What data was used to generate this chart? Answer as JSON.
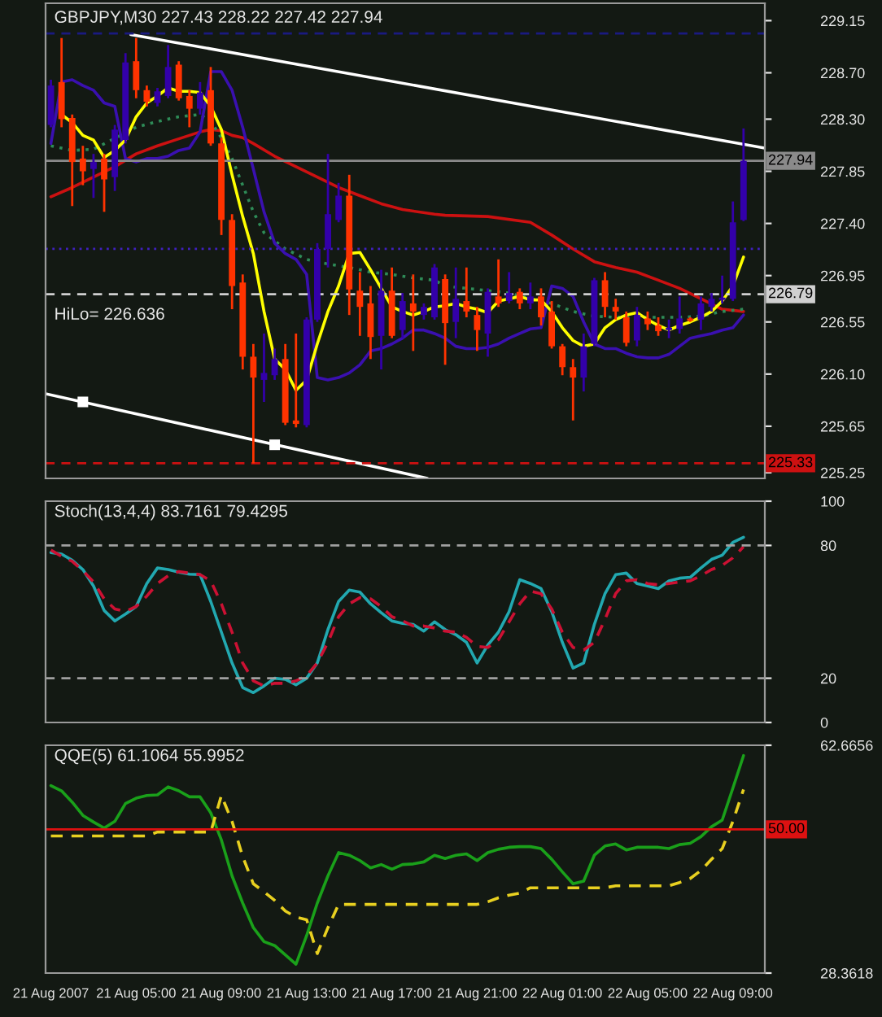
{
  "chart_data": [
    {
      "type": "candlestick",
      "title": "GBPJPY,M30 227.43 228.22 227.42 227.94",
      "annotations": [
        "HiLo= 226.636"
      ],
      "x": [
        "2007-08-21T01:00",
        "2007-08-21T01:30",
        "2007-08-21T02:00",
        "2007-08-21T02:30",
        "2007-08-21T03:00",
        "2007-08-21T03:30",
        "2007-08-21T04:00",
        "2007-08-21T04:30",
        "2007-08-21T05:00",
        "2007-08-21T05:30",
        "2007-08-21T06:00",
        "2007-08-21T06:30",
        "2007-08-21T07:00",
        "2007-08-21T07:30",
        "2007-08-21T08:00",
        "2007-08-21T08:30",
        "2007-08-21T09:00",
        "2007-08-21T09:30",
        "2007-08-21T10:00",
        "2007-08-21T10:30",
        "2007-08-21T11:00",
        "2007-08-21T11:30",
        "2007-08-21T12:00",
        "2007-08-21T12:30",
        "2007-08-21T13:00",
        "2007-08-21T13:30",
        "2007-08-21T14:00",
        "2007-08-21T14:30",
        "2007-08-21T15:00",
        "2007-08-21T15:30",
        "2007-08-21T16:00",
        "2007-08-21T16:30",
        "2007-08-21T17:00",
        "2007-08-21T17:30",
        "2007-08-21T18:00",
        "2007-08-21T18:30",
        "2007-08-21T19:00",
        "2007-08-21T19:30",
        "2007-08-21T20:00",
        "2007-08-21T20:30",
        "2007-08-21T21:00",
        "2007-08-21T21:30",
        "2007-08-21T22:00",
        "2007-08-21T22:30",
        "2007-08-21T23:00",
        "2007-08-21T23:30",
        "2007-08-22T00:00",
        "2007-08-22T00:30",
        "2007-08-22T01:00",
        "2007-08-22T01:30",
        "2007-08-22T02:00",
        "2007-08-22T02:30",
        "2007-08-22T03:00",
        "2007-08-22T03:30",
        "2007-08-22T04:00",
        "2007-08-22T04:30",
        "2007-08-22T05:00",
        "2007-08-22T05:30",
        "2007-08-22T06:00",
        "2007-08-22T06:30",
        "2007-08-22T07:00",
        "2007-08-22T07:30",
        "2007-08-22T08:00",
        "2007-08-22T08:30",
        "2007-08-22T09:00",
        "2007-08-22T09:30"
      ],
      "ohlc": [
        [
          228.25,
          228.64,
          228.23,
          228.59
        ],
        [
          228.62,
          229.0,
          228.23,
          228.3
        ],
        [
          228.31,
          228.34,
          227.55,
          227.93
        ],
        [
          227.96,
          228.07,
          227.73,
          227.85
        ],
        [
          227.87,
          228.0,
          227.62,
          227.93
        ],
        [
          227.96,
          228.0,
          227.5,
          227.78
        ],
        [
          227.8,
          228.25,
          227.68,
          228.21
        ],
        [
          228.12,
          228.87,
          228.09,
          228.79
        ],
        [
          228.8,
          229.0,
          228.48,
          228.55
        ],
        [
          228.55,
          228.59,
          228.41,
          228.45
        ],
        [
          228.44,
          228.57,
          228.41,
          228.54
        ],
        [
          228.5,
          228.94,
          228.48,
          228.75
        ],
        [
          228.77,
          228.8,
          228.46,
          228.48
        ],
        [
          228.5,
          228.55,
          228.23,
          228.39
        ],
        [
          228.39,
          228.62,
          228.34,
          228.53
        ],
        [
          228.55,
          228.75,
          228.07,
          228.09
        ],
        [
          228.09,
          228.14,
          227.3,
          227.43
        ],
        [
          227.43,
          227.48,
          226.66,
          226.86
        ],
        [
          226.89,
          226.96,
          226.14,
          226.25
        ],
        [
          226.25,
          226.36,
          225.33,
          226.07
        ],
        [
          226.05,
          226.45,
          225.86,
          226.11
        ],
        [
          226.09,
          226.32,
          226.05,
          226.23
        ],
        [
          226.23,
          226.36,
          225.66,
          225.68
        ],
        [
          225.7,
          226.45,
          225.64,
          225.67
        ],
        [
          225.66,
          226.59,
          225.64,
          226.57
        ],
        [
          226.57,
          227.23,
          226.55,
          227.18
        ],
        [
          227.18,
          228.0,
          227.02,
          227.48
        ],
        [
          227.43,
          227.75,
          227.41,
          227.64
        ],
        [
          227.64,
          227.82,
          226.61,
          226.83
        ],
        [
          226.82,
          226.98,
          226.43,
          226.68
        ],
        [
          226.71,
          226.86,
          226.23,
          226.42
        ],
        [
          226.43,
          227.0,
          226.14,
          226.82
        ],
        [
          226.82,
          227.02,
          226.41,
          226.43
        ],
        [
          226.48,
          226.8,
          226.41,
          226.73
        ],
        [
          226.71,
          226.96,
          226.3,
          226.64
        ],
        [
          226.61,
          226.71,
          226.57,
          226.68
        ],
        [
          226.59,
          227.05,
          226.57,
          227.02
        ],
        [
          226.92,
          226.96,
          226.18,
          226.54
        ],
        [
          226.55,
          227.02,
          226.41,
          226.75
        ],
        [
          226.73,
          227.02,
          226.59,
          226.64
        ],
        [
          226.61,
          226.68,
          226.3,
          226.48
        ],
        [
          226.45,
          226.84,
          226.25,
          226.81
        ],
        [
          226.77,
          227.09,
          226.68,
          226.71
        ],
        [
          226.73,
          226.98,
          226.71,
          226.8
        ],
        [
          226.81,
          226.84,
          226.66,
          226.71
        ],
        [
          226.71,
          226.89,
          226.66,
          226.77
        ],
        [
          226.77,
          226.84,
          226.52,
          226.59
        ],
        [
          226.64,
          226.73,
          226.32,
          226.34
        ],
        [
          226.34,
          226.36,
          226.09,
          226.16
        ],
        [
          226.16,
          226.23,
          225.7,
          226.07
        ],
        [
          226.07,
          226.45,
          225.95,
          226.34
        ],
        [
          226.36,
          226.93,
          226.34,
          226.91
        ],
        [
          226.91,
          226.98,
          226.59,
          226.68
        ],
        [
          226.68,
          226.75,
          226.57,
          226.64
        ],
        [
          226.59,
          226.64,
          226.34,
          226.37
        ],
        [
          226.39,
          226.68,
          226.34,
          226.61
        ],
        [
          226.58,
          226.64,
          226.48,
          226.53
        ],
        [
          226.52,
          226.59,
          226.43,
          226.47
        ],
        [
          226.48,
          226.57,
          226.41,
          226.5
        ],
        [
          226.49,
          226.77,
          226.45,
          226.58
        ],
        [
          226.58,
          226.59,
          226.55,
          226.56
        ],
        [
          226.57,
          226.77,
          226.48,
          226.71
        ],
        [
          226.68,
          226.8,
          226.64,
          226.75
        ],
        [
          226.74,
          226.95,
          226.71,
          226.76
        ],
        [
          226.75,
          227.59,
          226.73,
          227.41
        ],
        [
          227.43,
          228.22,
          227.42,
          227.94
        ]
      ],
      "colors": [
        "#3300aa",
        "#ff3300",
        "#ff3300",
        "#ff3300",
        "#3300aa",
        "#ff3300",
        "#3300aa",
        "#3300aa",
        "#ff3300",
        "#ff3300",
        "#3300aa",
        "#3300aa",
        "#ff3300",
        "#ff3300",
        "#3300aa",
        "#ff3300",
        "#ff3300",
        "#ff3300",
        "#ff3300",
        "#ff3300",
        "#3300aa",
        "#3300aa",
        "#ff3300",
        "#ff3300",
        "#3300aa",
        "#3300aa",
        "#3300aa",
        "#3300aa",
        "#ff3300",
        "#ff3300",
        "#ff3300",
        "#3300aa",
        "#ff3300",
        "#3300aa",
        "#ff3300",
        "#3300aa",
        "#3300aa",
        "#ff3300",
        "#3300aa",
        "#ff3300",
        "#ff3300",
        "#3300aa",
        "#ff3300",
        "#3300aa",
        "#ff3300",
        "#3300aa",
        "#ff3300",
        "#ff3300",
        "#ff3300",
        "#ff3300",
        "#3300aa",
        "#3300aa",
        "#ff3300",
        "#ff3300",
        "#ff3300",
        "#3300aa",
        "#ff3300",
        "#ff3300",
        "#3300aa",
        "#3300aa",
        "#ff3300",
        "#3300aa",
        "#3300aa",
        "#3300aa",
        "#3300aa",
        "#3300aa"
      ],
      "series": [
        {
          "type": "line",
          "color": "#cc1111",
          "x": [
            "2007-08-21T01:00",
            "2007-08-21T02:00",
            "2007-08-21T03:00",
            "2007-08-21T04:00",
            "2007-08-21T05:00",
            "2007-08-21T06:00",
            "2007-08-21T07:00",
            "2007-08-21T08:00",
            "2007-08-21T08:30",
            "2007-08-21T09:00",
            "2007-08-21T09:30",
            "2007-08-21T10:00",
            "2007-08-21T10:30",
            "2007-08-21T11:30",
            "2007-08-21T12:30",
            "2007-08-21T13:30",
            "2007-08-21T14:30",
            "2007-08-21T15:30",
            "2007-08-21T16:30",
            "2007-08-21T17:30",
            "2007-08-21T19:00",
            "2007-08-21T19:30",
            "2007-08-21T21:30",
            "2007-08-21T23:30",
            "2007-08-22T00:30",
            "2007-08-22T01:30",
            "2007-08-22T02:30",
            "2007-08-22T03:30",
            "2007-08-22T04:30",
            "2007-08-22T05:30",
            "2007-08-22T06:30",
            "2007-08-22T07:30",
            "2007-08-22T08:30",
            "2007-08-22T09:30"
          ],
          "values": [
            227.63,
            227.71,
            227.8,
            227.89,
            228.0,
            228.07,
            228.13,
            228.19,
            228.21,
            228.2,
            228.16,
            228.14,
            228.09,
            227.98,
            227.89,
            227.8,
            227.71,
            227.64,
            227.57,
            227.52,
            227.48,
            227.47,
            227.46,
            227.41,
            227.3,
            227.18,
            227.07,
            227.02,
            226.98,
            226.91,
            226.84,
            226.75,
            226.66,
            226.64
          ]
        },
        {
          "type": "line",
          "color": "#2e8b57",
          "line_style": "dotted",
          "x": [
            "2007-08-21T01:00",
            "2007-08-21T02:00",
            "2007-08-21T03:00",
            "2007-08-21T05:00",
            "2007-08-21T06:00",
            "2007-08-21T07:00",
            "2007-08-21T08:00",
            "2007-08-21T08:30",
            "2007-08-21T09:00",
            "2007-08-21T09:30",
            "2007-08-21T10:00",
            "2007-08-21T10:30",
            "2007-08-21T11:00",
            "2007-08-21T12:00",
            "2007-08-21T13:00",
            "2007-08-21T14:00",
            "2007-08-21T15:00",
            "2007-08-21T16:00",
            "2007-08-21T17:00",
            "2007-08-21T18:00",
            "2007-08-21T19:00",
            "2007-08-21T19:30",
            "2007-08-21T20:30",
            "2007-08-21T21:30",
            "2007-08-21T22:30",
            "2007-08-21T23:30",
            "2007-08-22T00:30",
            "2007-08-22T01:30",
            "2007-08-22T02:30",
            "2007-08-22T03:30",
            "2007-08-22T04:30",
            "2007-08-22T05:30",
            "2007-08-22T06:30",
            "2007-08-22T07:30",
            "2007-08-22T08:30",
            "2007-08-22T09:30"
          ],
          "values": [
            228.07,
            228.03,
            228.04,
            228.23,
            228.28,
            228.32,
            228.34,
            228.28,
            228.14,
            227.96,
            227.73,
            227.5,
            227.32,
            227.18,
            227.09,
            227.05,
            227.02,
            226.98,
            226.96,
            226.93,
            226.91,
            226.86,
            226.84,
            226.82,
            226.8,
            226.75,
            226.71,
            226.64,
            226.6,
            226.59,
            226.59,
            226.59,
            226.59,
            226.6,
            226.64,
            226.66
          ]
        },
        {
          "type": "line",
          "color": "#3a10b0",
          "values": [
            228.09,
            228.62,
            228.64,
            228.59,
            228.55,
            228.44,
            228.41,
            227.96,
            227.93,
            227.96,
            227.96,
            227.98,
            228.03,
            228.05,
            228.19,
            228.71,
            228.71,
            228.55,
            228.23,
            227.87,
            227.5,
            227.23,
            227.14,
            227.09,
            226.96,
            226.07,
            226.05,
            226.07,
            226.11,
            226.18,
            226.3,
            226.32,
            226.36,
            226.41,
            226.48,
            226.48,
            226.45,
            226.41,
            226.34,
            226.32,
            226.32,
            226.33,
            226.36,
            226.41,
            226.45,
            226.49,
            226.5,
            226.86,
            226.84,
            226.77,
            226.55,
            226.36,
            226.32,
            226.32,
            226.28,
            226.25,
            226.24,
            226.24,
            226.27,
            226.34,
            226.41,
            226.43,
            226.45,
            226.48,
            226.5,
            226.61
          ]
        },
        {
          "type": "line",
          "color": "#ffff00",
          "values": [
            null,
            228.34,
            228.27,
            228.16,
            228.12,
            227.97,
            228.03,
            228.12,
            228.32,
            228.44,
            228.5,
            228.57,
            228.54,
            228.54,
            228.53,
            228.41,
            228.21,
            227.82,
            227.46,
            227.14,
            226.64,
            226.23,
            226.14,
            225.96,
            226.05,
            226.36,
            226.64,
            226.86,
            227.14,
            227.15,
            227.0,
            226.84,
            226.68,
            226.64,
            226.61,
            226.64,
            226.68,
            226.69,
            226.71,
            226.68,
            226.66,
            226.63,
            226.73,
            226.75,
            226.77,
            226.74,
            226.74,
            226.64,
            226.5,
            226.39,
            226.34,
            226.36,
            226.5,
            226.57,
            226.61,
            226.63,
            226.57,
            226.52,
            226.48,
            226.52,
            226.55,
            226.59,
            226.64,
            226.73,
            226.86,
            227.11
          ]
        },
        {
          "type": "line",
          "color": "#ffffff",
          "x": [
            "2007-08-21T04:45",
            "2007-08-22T10:30"
          ],
          "values": [
            229.03,
            228.05
          ]
        },
        {
          "type": "line",
          "color": "#ffffff",
          "x": [
            "2007-08-21T00:45",
            "2007-08-21T18:40"
          ],
          "values": [
            225.93,
            225.2
          ]
        },
        {
          "type": "scatter",
          "color": "#ffffff",
          "marker": "square",
          "x": [
            "2007-08-21T02:30",
            "2007-08-21T11:30"
          ],
          "values": [
            225.86,
            225.49
          ]
        }
      ],
      "xlim": [
        "2007-08-21T00:45",
        "2007-08-22T10:30"
      ],
      "xticks": [
        {
          "value": "2007-08-21T01:00",
          "label": null
        },
        {
          "value": "2007-08-21T05:00",
          "label": null
        },
        {
          "value": "2007-08-21T09:00",
          "label": null
        },
        {
          "value": "2007-08-21T13:00",
          "label": null
        },
        {
          "value": "2007-08-21T17:00",
          "label": null
        },
        {
          "value": "2007-08-21T21:00",
          "label": null
        },
        {
          "value": "2007-08-22T01:00",
          "label": null
        },
        {
          "value": "2007-08-22T05:00",
          "label": null
        },
        {
          "value": "2007-08-22T09:00",
          "label": null
        }
      ],
      "ylim": [
        225.2,
        229.3
      ],
      "yticks": [
        229.15,
        {
          "value": 228.7,
          "label": "228.70"
        },
        {
          "value": 228.3,
          "label": "228.30"
        },
        227.85,
        {
          "value": 227.4,
          "label": "227.40"
        },
        226.95,
        226.55,
        {
          "value": 226.1,
          "label": "226.10"
        },
        225.65,
        225.25
      ],
      "tick_labels": "y",
      "ref_lines": [
        {
          "axis": "y",
          "value": 229.04,
          "color": "#1a1a80",
          "line_style": "dashed"
        },
        {
          "axis": "y",
          "value": 227.94,
          "label": "227.94",
          "color": "#8a8a8a",
          "line_style": "solid"
        },
        {
          "axis": "y",
          "value": 227.18,
          "color": "#4020c0",
          "line_style": "dotted"
        },
        {
          "axis": "y",
          "value": 226.79,
          "label": "226.79",
          "color": "#d0d0d0",
          "line_style": "dashed"
        },
        {
          "axis": "y",
          "value": 225.33,
          "label": "225.33",
          "color": "#cc1111",
          "line_style": "dashed"
        }
      ]
    },
    {
      "type": "line",
      "title": "Stoch(13,4,4) 83.7161 79.4295",
      "x": [
        "2007-08-21T01:00",
        "2007-08-21T01:30",
        "2007-08-21T02:00",
        "2007-08-21T02:30",
        "2007-08-21T03:00",
        "2007-08-21T03:30",
        "2007-08-21T04:00",
        "2007-08-21T04:30",
        "2007-08-21T05:00",
        "2007-08-21T05:30",
        "2007-08-21T06:00",
        "2007-08-21T06:30",
        "2007-08-21T07:00",
        "2007-08-21T07:30",
        "2007-08-21T08:00",
        "2007-08-21T08:30",
        "2007-08-21T09:00",
        "2007-08-21T09:30",
        "2007-08-21T10:00",
        "2007-08-21T10:30",
        "2007-08-21T11:00",
        "2007-08-21T11:30",
        "2007-08-21T12:00",
        "2007-08-21T12:30",
        "2007-08-21T13:00",
        "2007-08-21T13:30",
        "2007-08-21T14:00",
        "2007-08-21T14:30",
        "2007-08-21T15:00",
        "2007-08-21T15:30",
        "2007-08-21T16:00",
        "2007-08-21T16:30",
        "2007-08-21T17:00",
        "2007-08-21T17:30",
        "2007-08-21T18:00",
        "2007-08-21T18:30",
        "2007-08-21T19:00",
        "2007-08-21T19:30",
        "2007-08-21T20:00",
        "2007-08-21T20:30",
        "2007-08-21T21:00",
        "2007-08-21T21:30",
        "2007-08-21T22:00",
        "2007-08-21T22:30",
        "2007-08-21T23:00",
        "2007-08-21T23:30",
        "2007-08-22T00:00",
        "2007-08-22T00:30",
        "2007-08-22T01:00",
        "2007-08-22T01:30",
        "2007-08-22T02:00",
        "2007-08-22T02:30",
        "2007-08-22T03:00",
        "2007-08-22T03:30",
        "2007-08-22T04:00",
        "2007-08-22T04:30",
        "2007-08-22T05:00",
        "2007-08-22T05:30",
        "2007-08-22T06:00",
        "2007-08-22T06:30",
        "2007-08-22T07:00",
        "2007-08-22T07:30",
        "2007-08-22T08:00",
        "2007-08-22T08:30",
        "2007-08-22T09:00",
        "2007-08-22T09:30"
      ],
      "series": [
        {
          "color": "#22a8b0",
          "values": [
            76.8,
            76.1,
            73.3,
            69.1,
            61.7,
            50.6,
            45.9,
            49.0,
            52.4,
            62.8,
            69.8,
            69.1,
            67.9,
            67.0,
            66.8,
            54.7,
            40.8,
            26.9,
            15.8,
            13.5,
            16.5,
            20.0,
            19.5,
            17.0,
            20.0,
            26.9,
            42.0,
            54.7,
            59.8,
            58.9,
            53.6,
            49.6,
            45.9,
            44.8,
            44.3,
            41.3,
            45.5,
            42.0,
            39.7,
            36.2,
            26.9,
            35.0,
            40.8,
            50.1,
            64.5,
            62.8,
            60.5,
            50.1,
            36.2,
            24.6,
            26.9,
            44.3,
            58.2,
            66.8,
            67.5,
            62.8,
            61.7,
            60.5,
            64.0,
            65.2,
            65.6,
            69.8,
            73.7,
            75.6,
            81.4,
            83.7161
          ]
        },
        {
          "color": "#cc1133",
          "line_style": "dashed",
          "values": [
            77.9,
            75.1,
            72.8,
            68.6,
            63.5,
            55.9,
            51.3,
            50.1,
            52.4,
            57.1,
            62.8,
            66.3,
            68.2,
            67.5,
            66.8,
            64.0,
            53.6,
            40.8,
            26.9,
            18.8,
            16.5,
            17.7,
            17.7,
            18.8,
            21.1,
            26.9,
            36.2,
            47.8,
            53.6,
            56.4,
            55.9,
            52.4,
            47.8,
            45.9,
            43.6,
            43.6,
            42.7,
            41.3,
            40.8,
            38.5,
            34.4,
            33.9,
            37.4,
            45.5,
            53.6,
            59.4,
            58.2,
            51.3,
            40.8,
            33.9,
            32.7,
            36.2,
            46.6,
            58.2,
            64.0,
            64.5,
            62.8,
            62.2,
            62.8,
            63.5,
            64.0,
            66.3,
            69.1,
            71.0,
            74.4,
            79.4295
          ]
        }
      ],
      "xlim": [
        "2007-08-21T00:45",
        "2007-08-22T10:30"
      ],
      "xticks": [
        {
          "value": "2007-08-21T01:00",
          "label": null
        },
        {
          "value": "2007-08-21T05:00",
          "label": null
        },
        {
          "value": "2007-08-21T09:00",
          "label": null
        },
        {
          "value": "2007-08-21T13:00",
          "label": null
        },
        {
          "value": "2007-08-21T17:00",
          "label": null
        },
        {
          "value": "2007-08-21T21:00",
          "label": null
        },
        {
          "value": "2007-08-22T01:00",
          "label": null
        },
        {
          "value": "2007-08-22T05:00",
          "label": null
        },
        {
          "value": "2007-08-22T09:00",
          "label": null
        }
      ],
      "ylim": [
        0,
        100
      ],
      "yticks": [
        0,
        20,
        80,
        100
      ],
      "tick_labels": "y",
      "ref_lines": [
        {
          "axis": "y",
          "value": 80,
          "color": "#a0a0a0",
          "line_style": "dashed"
        },
        {
          "axis": "y",
          "value": 20,
          "color": "#a0a0a0",
          "line_style": "dashed"
        }
      ]
    },
    {
      "type": "line",
      "title": "QQE(5) 61.1064 55.9952",
      "x": [
        "2007-08-21T01:00",
        "2007-08-21T01:30",
        "2007-08-21T02:00",
        "2007-08-21T02:30",
        "2007-08-21T03:00",
        "2007-08-21T03:30",
        "2007-08-21T04:00",
        "2007-08-21T04:30",
        "2007-08-21T05:00",
        "2007-08-21T05:30",
        "2007-08-21T06:00",
        "2007-08-21T06:30",
        "2007-08-21T07:00",
        "2007-08-21T07:30",
        "2007-08-21T08:00",
        "2007-08-21T08:30",
        "2007-08-21T09:00",
        "2007-08-21T09:30",
        "2007-08-21T10:00",
        "2007-08-21T10:30",
        "2007-08-21T11:00",
        "2007-08-21T11:30",
        "2007-08-21T12:00",
        "2007-08-21T12:30",
        "2007-08-21T13:00",
        "2007-08-21T13:30",
        "2007-08-21T14:00",
        "2007-08-21T14:30",
        "2007-08-21T15:00",
        "2007-08-21T15:30",
        "2007-08-21T16:00",
        "2007-08-21T16:30",
        "2007-08-21T17:00",
        "2007-08-21T17:30",
        "2007-08-21T18:00",
        "2007-08-21T18:30",
        "2007-08-21T19:00",
        "2007-08-21T19:30",
        "2007-08-21T20:00",
        "2007-08-21T20:30",
        "2007-08-21T21:00",
        "2007-08-21T21:30",
        "2007-08-21T22:00",
        "2007-08-21T22:30",
        "2007-08-21T23:00",
        "2007-08-21T23:30",
        "2007-08-22T00:00",
        "2007-08-22T00:30",
        "2007-08-22T01:00",
        "2007-08-22T01:30",
        "2007-08-22T02:00",
        "2007-08-22T02:30",
        "2007-08-22T03:00",
        "2007-08-22T03:30",
        "2007-08-22T04:00",
        "2007-08-22T04:30",
        "2007-08-22T05:00",
        "2007-08-22T05:30",
        "2007-08-22T06:00",
        "2007-08-22T06:30",
        "2007-08-22T07:00",
        "2007-08-22T07:30",
        "2007-08-22T08:00",
        "2007-08-22T08:30",
        "2007-08-22T09:00",
        "2007-08-22T09:30"
      ],
      "series": [
        {
          "color": "#1aa01a",
          "values": [
            56.6,
            55.8,
            54.1,
            52.1,
            51.1,
            50.2,
            51.2,
            53.9,
            54.7,
            55.1,
            55.2,
            56.4,
            55.8,
            54.9,
            54.9,
            52.5,
            48.4,
            43.0,
            38.9,
            35.2,
            33.1,
            32.5,
            31.1,
            29.7,
            34.0,
            38.9,
            43.0,
            46.5,
            46.1,
            45.3,
            44.2,
            44.7,
            44.0,
            44.7,
            44.8,
            45.1,
            46.1,
            45.6,
            46.1,
            46.3,
            45.3,
            46.5,
            47.0,
            47.3,
            47.4,
            47.4,
            47.1,
            45.5,
            43.6,
            41.8,
            42.2,
            46.1,
            47.5,
            47.8,
            46.9,
            47.3,
            47.3,
            47.3,
            47.1,
            47.7,
            47.9,
            48.9,
            50.4,
            51.4,
            56.2,
            61.1064
          ]
        },
        {
          "color": "#e8d020",
          "line_style": "dashed",
          "values": [
            49.0,
            49.0,
            49.0,
            49.0,
            49.0,
            49.0,
            49.0,
            49.0,
            49.0,
            49.0,
            49.6,
            49.6,
            49.6,
            49.6,
            49.6,
            49.6,
            55.1,
            51.2,
            45.9,
            41.8,
            40.6,
            39.3,
            37.7,
            36.8,
            36.4,
            31.3,
            35.2,
            38.7,
            38.7,
            38.7,
            38.7,
            38.7,
            38.7,
            38.7,
            38.7,
            38.7,
            38.7,
            38.7,
            38.7,
            38.7,
            38.7,
            39.1,
            39.7,
            40.1,
            40.4,
            41.2,
            41.2,
            41.2,
            41.2,
            41.2,
            41.2,
            41.2,
            41.2,
            41.5,
            41.5,
            41.5,
            41.5,
            41.5,
            41.5,
            42.0,
            42.6,
            43.8,
            45.5,
            47.1,
            51.2,
            55.9952
          ]
        }
      ],
      "xlim": [
        "2007-08-21T00:45",
        "2007-08-22T10:30"
      ],
      "xticks": [
        {
          "value": "2007-08-21T01:00",
          "label": "21 Aug 2007"
        },
        {
          "value": "2007-08-21T05:00",
          "label": "21 Aug 05:00"
        },
        {
          "value": "2007-08-21T09:00",
          "label": "21 Aug 09:00"
        },
        {
          "value": "2007-08-21T13:00",
          "label": "21 Aug 13:00"
        },
        {
          "value": "2007-08-21T17:00",
          "label": "21 Aug 17:00"
        },
        {
          "value": "2007-08-21T21:00",
          "label": "21 Aug 21:00"
        },
        {
          "value": "2007-08-22T01:00",
          "label": "22 Aug 01:00"
        },
        {
          "value": "2007-08-22T05:00",
          "label": "22 Aug 05:00"
        },
        {
          "value": "2007-08-22T09:00",
          "label": "22 Aug 09:00"
        }
      ],
      "ylim": [
        28.3618,
        62.6656
      ],
      "yticks": [
        28.3618,
        62.6656
      ],
      "ref_lines": [
        {
          "axis": "y",
          "value": 50,
          "label": "50.00",
          "color": "#dd1111",
          "line_style": "solid"
        }
      ]
    }
  ]
}
